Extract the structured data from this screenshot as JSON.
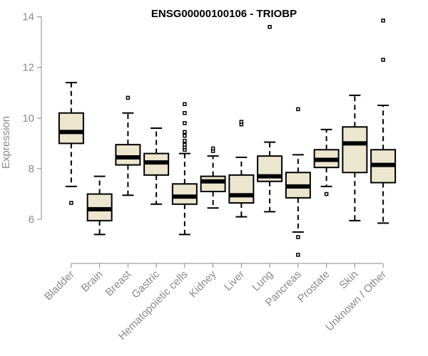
{
  "chart_data": {
    "type": "boxplot",
    "title": "ENSG00000100106 - TRIOBP",
    "ylabel": "Expression",
    "xlabel": "",
    "ylim": [
      4.4,
      14.1
    ],
    "yticks": [
      6,
      8,
      10,
      12,
      14
    ],
    "colors": {
      "box_fill": "#ede6cf",
      "stroke": "#000000",
      "axis": "#8a8a8a"
    },
    "categories": [
      "Bladder",
      "Brain",
      "Breast",
      "Gastric",
      "Hematopoietic cells",
      "Kidney",
      "Liver",
      "Lung",
      "Pancreas",
      "Prostate",
      "Skin",
      "Unknown / Other"
    ],
    "boxes": [
      {
        "name": "Bladder",
        "whisker_low": 7.3,
        "q1": 9.0,
        "median": 9.45,
        "q3": 10.2,
        "whisker_high": 11.4,
        "outliers": [
          6.65
        ]
      },
      {
        "name": "Brain",
        "whisker_low": 5.4,
        "q1": 5.95,
        "median": 6.4,
        "q3": 7.0,
        "whisker_high": 7.7,
        "outliers": []
      },
      {
        "name": "Breast",
        "whisker_low": 6.95,
        "q1": 8.15,
        "median": 8.45,
        "q3": 8.95,
        "whisker_high": 10.2,
        "outliers": [
          10.8
        ]
      },
      {
        "name": "Gastric",
        "whisker_low": 6.6,
        "q1": 7.75,
        "median": 8.25,
        "q3": 8.6,
        "whisker_high": 9.6,
        "outliers": []
      },
      {
        "name": "Hematopoietic cells",
        "whisker_low": 5.4,
        "q1": 6.6,
        "median": 6.9,
        "q3": 7.4,
        "whisker_high": 8.6,
        "outliers": [
          8.75,
          8.85,
          8.95,
          9.1,
          9.3,
          9.45,
          9.8,
          10.2,
          10.55
        ]
      },
      {
        "name": "Kidney",
        "whisker_low": 6.45,
        "q1": 7.1,
        "median": 7.5,
        "q3": 7.7,
        "whisker_high": 8.5,
        "outliers": [
          8.7,
          8.8
        ]
      },
      {
        "name": "Liver",
        "whisker_low": 6.1,
        "q1": 6.65,
        "median": 6.95,
        "q3": 7.75,
        "whisker_high": 8.45,
        "outliers": [
          9.75,
          9.85
        ]
      },
      {
        "name": "Lung",
        "whisker_low": 6.3,
        "q1": 7.5,
        "median": 7.7,
        "q3": 8.5,
        "whisker_high": 9.05,
        "outliers": [
          13.6
        ]
      },
      {
        "name": "Pancreas",
        "whisker_low": 5.5,
        "q1": 6.85,
        "median": 7.3,
        "q3": 7.85,
        "whisker_high": 8.55,
        "outliers": [
          5.3,
          4.6,
          10.35
        ]
      },
      {
        "name": "Prostate",
        "whisker_low": 7.3,
        "q1": 8.05,
        "median": 8.35,
        "q3": 8.75,
        "whisker_high": 9.55,
        "outliers": [
          7.0
        ]
      },
      {
        "name": "Skin",
        "whisker_low": 5.95,
        "q1": 7.85,
        "median": 9.0,
        "q3": 9.65,
        "whisker_high": 10.9,
        "outliers": []
      },
      {
        "name": "Unknown / Other",
        "whisker_low": 5.85,
        "q1": 7.45,
        "median": 8.15,
        "q3": 8.75,
        "whisker_high": 10.5,
        "outliers": [
          12.3,
          13.85
        ]
      }
    ]
  }
}
